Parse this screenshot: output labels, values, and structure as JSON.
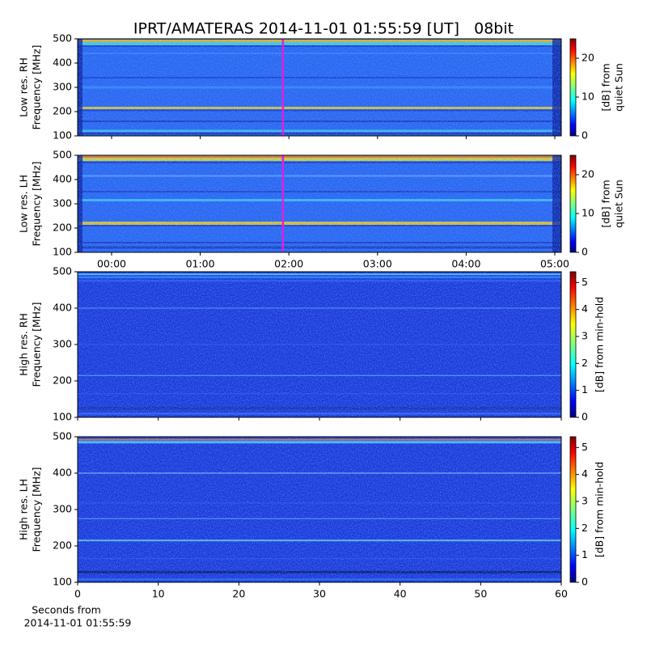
{
  "title": "IPRT/AMATERAS 2014-11-01 01:55:59 [UT]   08bit",
  "chart_data": [
    {
      "type": "heatmap",
      "ylabel": [
        "Low res. RH",
        "Frequency [MHz]"
      ],
      "xlim": [
        -0.383,
        5.073
      ],
      "xticks": [
        {
          "value": 0,
          "label": "00:00"
        },
        {
          "value": 1,
          "label": "01:00"
        },
        {
          "value": 2,
          "label": "02:00"
        },
        {
          "value": 3,
          "label": "03:00"
        },
        {
          "value": 4,
          "label": "04:00"
        },
        {
          "value": 5,
          "label": "05:00"
        }
      ],
      "show_xtick_labels": false,
      "ylim": [
        100,
        500
      ],
      "yticks": [
        100,
        200,
        300,
        400,
        500
      ],
      "cursor_x": 1.933,
      "cursor_color": "#e020e0",
      "colormap": "jet",
      "colorbar": {
        "label": [
          "[dB] from",
          "quiet Sun"
        ],
        "lim": [
          0,
          25
        ],
        "ticks": [
          0,
          10,
          20
        ]
      }
    },
    {
      "type": "heatmap",
      "ylabel": [
        "Low res. LH",
        "Frequency [MHz]"
      ],
      "xlim": [
        -0.383,
        5.073
      ],
      "xticks": [
        {
          "value": 0,
          "label": "00:00"
        },
        {
          "value": 1,
          "label": "01:00"
        },
        {
          "value": 2,
          "label": "02:00"
        },
        {
          "value": 3,
          "label": "03:00"
        },
        {
          "value": 4,
          "label": "04:00"
        },
        {
          "value": 5,
          "label": "05:00"
        }
      ],
      "show_xtick_labels": true,
      "ylim": [
        100,
        500
      ],
      "yticks": [
        100,
        200,
        300,
        400,
        500
      ],
      "cursor_x": 1.933,
      "cursor_color": "#e020e0",
      "colormap": "jet",
      "colorbar": {
        "label": [
          "[dB] from",
          "quiet Sun"
        ],
        "lim": [
          0,
          25
        ],
        "ticks": [
          0,
          10,
          20
        ]
      }
    },
    {
      "type": "heatmap",
      "ylabel": [
        "High res. RH",
        "Frequency [MHz]"
      ],
      "xlim": [
        0,
        60
      ],
      "xticks": [
        0,
        10,
        20,
        30,
        40,
        50,
        60
      ],
      "show_xtick_labels": false,
      "ylim": [
        100,
        500
      ],
      "yticks": [
        100,
        200,
        300,
        400,
        500
      ],
      "colormap": "jet",
      "colorbar": {
        "label": [
          "[dB] from min-hold"
        ],
        "lim": [
          0,
          5.4
        ],
        "ticks": [
          0,
          1,
          2,
          3,
          4,
          5
        ]
      }
    },
    {
      "type": "heatmap",
      "ylabel": [
        "High res. LH",
        "Frequency [MHz]"
      ],
      "xlim": [
        0,
        60
      ],
      "xticks": [
        0,
        10,
        20,
        30,
        40,
        50,
        60
      ],
      "show_xtick_labels": true,
      "xlabel": [
        "Seconds from",
        "2014-11-01 01:55:59"
      ],
      "ylim": [
        100,
        500
      ],
      "yticks": [
        100,
        200,
        300,
        400,
        500
      ],
      "colormap": "jet",
      "colorbar": {
        "label": [
          "[dB] from min-hold"
        ],
        "lim": [
          0,
          5.4
        ],
        "ticks": [
          0,
          1,
          2,
          3,
          4,
          5
        ]
      }
    }
  ]
}
